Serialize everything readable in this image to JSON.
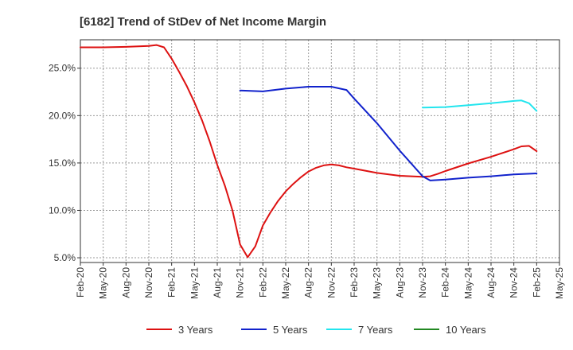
{
  "chart_data": {
    "type": "line",
    "title": "[6182]  Trend of StDev of Net Income Margin",
    "xlabel": "",
    "ylabel": "",
    "x_tick_labels": [
      "Feb-20",
      "May-20",
      "Aug-20",
      "Nov-20",
      "Feb-21",
      "May-21",
      "Aug-21",
      "Nov-21",
      "Feb-22",
      "May-22",
      "Aug-22",
      "Nov-22",
      "Feb-23",
      "May-23",
      "Aug-23",
      "Nov-23",
      "Feb-24",
      "May-24",
      "Aug-24",
      "Nov-24",
      "Feb-25",
      "May-25"
    ],
    "y_ticks": [
      5.0,
      10.0,
      15.0,
      20.0,
      25.0
    ],
    "y_tick_labels": [
      "5.0%",
      "10.0%",
      "15.0%",
      "20.0%",
      "25.0%"
    ],
    "ylim": [
      4.5,
      28.0
    ],
    "grid": true,
    "legend_position": "bottom",
    "series": [
      {
        "name": "3 Years",
        "color": "#dd1111",
        "points": [
          [
            "Feb-20",
            27.2
          ],
          [
            "May-20",
            27.2
          ],
          [
            "Aug-20",
            27.25
          ],
          [
            "Nov-20",
            27.35
          ],
          [
            "Dec-20",
            27.45
          ],
          [
            "Jan-21",
            27.2
          ],
          [
            "Feb-21",
            26.0
          ],
          [
            "Mar-21",
            24.6
          ],
          [
            "Apr-21",
            23.1
          ],
          [
            "May-21",
            21.4
          ],
          [
            "Jun-21",
            19.5
          ],
          [
            "Jul-21",
            17.3
          ],
          [
            "Aug-21",
            14.8
          ],
          [
            "Sep-21",
            12.6
          ],
          [
            "Oct-21",
            10.0
          ],
          [
            "Nov-21",
            6.4
          ],
          [
            "Dec-21",
            5.05
          ],
          [
            "Jan-22",
            6.2
          ],
          [
            "Feb-22",
            8.4
          ],
          [
            "Mar-22",
            9.8
          ],
          [
            "Apr-22",
            11.0
          ],
          [
            "May-22",
            12.0
          ],
          [
            "Jun-22",
            12.8
          ],
          [
            "Jul-22",
            13.5
          ],
          [
            "Aug-22",
            14.1
          ],
          [
            "Sep-22",
            14.5
          ],
          [
            "Oct-22",
            14.75
          ],
          [
            "Nov-22",
            14.85
          ],
          [
            "Dec-22",
            14.75
          ],
          [
            "Jan-23",
            14.55
          ],
          [
            "Feb-23",
            14.4
          ],
          [
            "May-23",
            13.95
          ],
          [
            "Aug-23",
            13.65
          ],
          [
            "Nov-23",
            13.55
          ],
          [
            "Dec-23",
            13.6
          ],
          [
            "Jan-24",
            13.85
          ],
          [
            "Feb-24",
            14.15
          ],
          [
            "May-24",
            14.95
          ],
          [
            "Aug-24",
            15.65
          ],
          [
            "Nov-24",
            16.45
          ],
          [
            "Dec-24",
            16.75
          ],
          [
            "Jan-25",
            16.8
          ],
          [
            "Feb-25",
            16.25
          ]
        ]
      },
      {
        "name": "5 Years",
        "color": "#1122cc",
        "points": [
          [
            "Nov-21",
            22.65
          ],
          [
            "Feb-22",
            22.55
          ],
          [
            "May-22",
            22.85
          ],
          [
            "Aug-22",
            23.05
          ],
          [
            "Nov-22",
            23.05
          ],
          [
            "Jan-23",
            22.7
          ],
          [
            "Feb-23",
            21.8
          ],
          [
            "May-23",
            19.2
          ],
          [
            "Aug-23",
            16.3
          ],
          [
            "Nov-23",
            13.6
          ],
          [
            "Dec-23",
            13.15
          ],
          [
            "Feb-24",
            13.25
          ],
          [
            "May-24",
            13.45
          ],
          [
            "Aug-24",
            13.6
          ],
          [
            "Nov-24",
            13.8
          ],
          [
            "Feb-25",
            13.9
          ]
        ]
      },
      {
        "name": "7 Years",
        "color": "#22e5ee",
        "points": [
          [
            "Nov-23",
            20.85
          ],
          [
            "Feb-24",
            20.9
          ],
          [
            "May-24",
            21.1
          ],
          [
            "Aug-24",
            21.3
          ],
          [
            "Nov-24",
            21.55
          ],
          [
            "Dec-24",
            21.6
          ],
          [
            "Jan-25",
            21.3
          ],
          [
            "Feb-25",
            20.5
          ]
        ]
      },
      {
        "name": "10 Years",
        "color": "#228822",
        "points": []
      }
    ]
  }
}
